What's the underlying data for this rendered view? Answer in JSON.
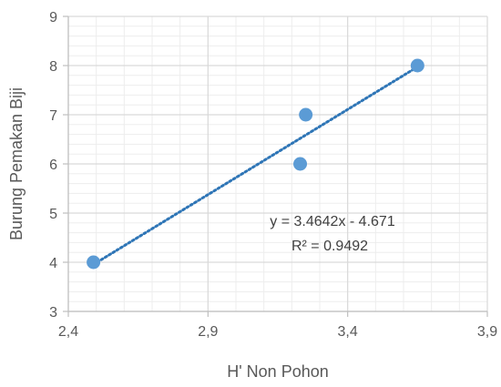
{
  "chart_data": {
    "type": "scatter",
    "xlabel": "H' Non Pohon",
    "ylabel": "Burung Pemakan Biji",
    "xlim": [
      2.4,
      3.9
    ],
    "ylim": [
      3,
      9
    ],
    "x_ticks": [
      2.4,
      2.9,
      3.4,
      3.9
    ],
    "x_tick_labels": [
      "2,4",
      "2,9",
      "3,4",
      "3,9"
    ],
    "y_ticks": [
      3,
      4,
      5,
      6,
      7,
      8,
      9
    ],
    "y_tick_labels": [
      "3",
      "4",
      "5",
      "6",
      "7",
      "8",
      "9"
    ],
    "grid": true,
    "minor_grid": true,
    "points": [
      {
        "x": 2.49,
        "y": 4
      },
      {
        "x": 3.23,
        "y": 6
      },
      {
        "x": 3.25,
        "y": 7
      },
      {
        "x": 3.65,
        "y": 8
      }
    ],
    "trendline": {
      "type": "linear",
      "slope": 3.4642,
      "intercept": -4.671,
      "x_range": [
        2.49,
        3.65
      ],
      "style": "dotted"
    },
    "annotations": {
      "equation": "y = 3.4642x - 4.671",
      "r_squared": "R² = 0.9492"
    },
    "colors": {
      "marker": "#5B9BD5",
      "trendline": "#2E75B6",
      "major_grid": "#D9D9D9",
      "minor_grid": "#EDEDED",
      "axis": "#BFBFBF"
    }
  }
}
